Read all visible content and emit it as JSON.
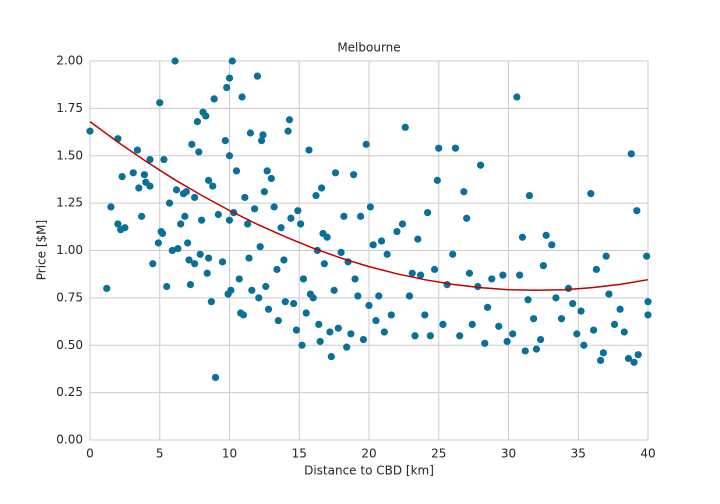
{
  "chart_data": {
    "type": "scatter",
    "title": "Melbourne",
    "x_label": "Distance to CBD [km]",
    "y_label": "Price [$M]",
    "xlim": [
      0,
      40
    ],
    "ylim": [
      0,
      2
    ],
    "xticks": [
      0,
      5,
      10,
      15,
      20,
      25,
      30,
      35,
      40
    ],
    "yticks": [
      {
        "value": 0,
        "label": "0.00"
      },
      {
        "value": 0.25,
        "label": "0.25"
      },
      {
        "value": 0.5,
        "label": "0.50"
      },
      {
        "value": 0.75,
        "label": "0.75"
      },
      {
        "value": 1,
        "label": "1.00"
      },
      {
        "value": 1.25,
        "label": "1.25"
      },
      {
        "value": 1.5,
        "label": "1.50"
      },
      {
        "value": 1.75,
        "label": "1.75"
      },
      {
        "value": 2,
        "label": "2.00"
      }
    ],
    "grid": true,
    "color": "#0a6f99",
    "x": [
      0,
      1.2,
      1.5,
      2,
      2,
      2.2,
      2.3,
      2.5,
      3.1,
      3.4,
      3.5,
      3.7,
      3.9,
      4,
      4.3,
      4.3,
      4.5,
      4.9,
      5,
      5.1,
      5.2,
      5.3,
      5.5,
      5.7,
      5.9,
      6.1,
      6.2,
      6.3,
      6.5,
      6.7,
      6.8,
      6.9,
      7,
      7.1,
      7.2,
      7.3,
      7.5,
      7.5,
      7.7,
      7.8,
      7.9,
      8,
      8.1,
      8.3,
      8.4,
      8.5,
      8.5,
      8.7,
      8.8,
      8.9,
      9,
      9.2,
      9.5,
      9.7,
      9.8,
      9.9,
      10,
      10,
      10,
      10.1,
      10.2,
      10.3,
      10.5,
      10.7,
      10.8,
      10.9,
      11,
      11.1,
      11.3,
      11.4,
      11.5,
      11.6,
      11.8,
      12,
      12.1,
      12.2,
      12.3,
      12.4,
      12.5,
      12.6,
      12.7,
      12.8,
      13,
      13.2,
      13.4,
      13.5,
      13.7,
      13.9,
      14,
      14.2,
      14.3,
      14.4,
      14.6,
      14.8,
      14.9,
      15.1,
      15.2,
      15.3,
      15.5,
      15.7,
      15.8,
      16,
      16.2,
      16.3,
      16.4,
      16.5,
      16.6,
      16.7,
      16.8,
      17,
      17.2,
      17.3,
      17.5,
      17.6,
      17.8,
      18,
      18.2,
      18.4,
      18.5,
      18.7,
      18.9,
      19,
      19.2,
      19.4,
      19.6,
      19.8,
      20,
      20.1,
      20.3,
      20.5,
      20.7,
      20.9,
      21.1,
      21.3,
      21.6,
      22,
      22.4,
      22.6,
      22.9,
      23.1,
      23.3,
      23.5,
      23.7,
      24,
      24.2,
      24.4,
      24.7,
      24.9,
      25,
      25.3,
      25.6,
      26,
      26.2,
      26.5,
      26.8,
      27,
      27.2,
      27.4,
      27.8,
      28,
      28.3,
      28.5,
      28.8,
      29.3,
      29.6,
      29.9,
      30.3,
      30.6,
      30.8,
      31,
      31.2,
      31.4,
      31.5,
      31.8,
      32,
      32.3,
      32.5,
      32.7,
      33.1,
      33.4,
      33.8,
      34.3,
      34.6,
      34.9,
      35.2,
      35.4,
      35.9,
      36.1,
      36.3,
      36.6,
      36.8,
      37,
      37.2,
      37.6,
      38,
      38.3,
      38.6,
      38.8,
      39,
      39.2,
      39.3,
      39.9,
      40,
      40
    ],
    "values": [
      1.63,
      0.8,
      1.23,
      1.59,
      1.14,
      1.11,
      1.39,
      1.12,
      1.41,
      1.53,
      1.33,
      1.18,
      1.4,
      1.36,
      1.34,
      1.48,
      0.93,
      1.04,
      1.78,
      1.1,
      1.09,
      1.48,
      0.81,
      1.25,
      1,
      2,
      1.32,
      1.01,
      1.14,
      1.3,
      1.18,
      1.31,
      1.04,
      0.95,
      0.82,
      1.56,
      1.28,
      0.93,
      1.68,
      1.52,
      0.98,
      1.16,
      1.73,
      1.71,
      0.88,
      1.37,
      0.96,
      0.73,
      1.34,
      1.8,
      0.33,
      1.19,
      0.94,
      1.58,
      1.86,
      0.77,
      1.5,
      1.91,
      1.16,
      0.79,
      2,
      1.2,
      1.42,
      0.85,
      0.67,
      1.81,
      0.66,
      1.28,
      1.14,
      0.96,
      1.62,
      0.79,
      1.22,
      1.92,
      0.75,
      1.02,
      1.58,
      1.61,
      1.31,
      0.81,
      1.42,
      0.69,
      1.38,
      1.23,
      0.9,
      0.63,
      1.12,
      0.95,
      0.73,
      1.63,
      1.69,
      1.17,
      0.72,
      0.58,
      1.21,
      1.14,
      0.5,
      0.85,
      0.67,
      1.53,
      0.77,
      0.75,
      1.29,
      1,
      0.61,
      0.52,
      1.33,
      1.09,
      0.93,
      1.07,
      0.57,
      0.44,
      0.79,
      1.41,
      0.59,
      0.99,
      1.18,
      0.49,
      0.94,
      0.56,
      1.4,
      0.85,
      0.76,
      1.18,
      0.53,
      1.56,
      0.71,
      1.23,
      1.03,
      0.63,
      0.76,
      1.05,
      0.57,
      0.98,
      0.66,
      1.1,
      1.14,
      1.65,
      0.76,
      0.88,
      0.55,
      1.06,
      0.87,
      0.66,
      1.2,
      0.55,
      0.9,
      1.37,
      1.54,
      0.61,
      0.82,
      0.98,
      1.54,
      0.55,
      1.31,
      1.17,
      0.88,
      0.61,
      0.81,
      1.45,
      0.51,
      0.7,
      0.85,
      0.6,
      0.87,
      0.52,
      0.56,
      1.81,
      0.87,
      1.07,
      0.47,
      0.74,
      1.29,
      0.64,
      0.48,
      0.53,
      0.92,
      1.08,
      1.03,
      0.75,
      0.64,
      0.8,
      0.72,
      0.56,
      0.68,
      0.5,
      1.3,
      0.58,
      0.9,
      0.42,
      0.46,
      0.97,
      0.77,
      0.61,
      0.69,
      0.57,
      0.43,
      1.51,
      0.41,
      1.21,
      0.45,
      0.97,
      0.73,
      0.66
    ],
    "fit_color": "#c00000",
    "fit_x": [
      0,
      2,
      4,
      6,
      8,
      10,
      12,
      14,
      16,
      18,
      20,
      22,
      24,
      26,
      28,
      30,
      32,
      34,
      36,
      38,
      40
    ],
    "fit_values": [
      1.68,
      1.572,
      1.471,
      1.377,
      1.291,
      1.211,
      1.138,
      1.072,
      1.012,
      0.96,
      0.915,
      0.877,
      0.846,
      0.821,
      0.804,
      0.793,
      0.79,
      0.793,
      0.804,
      0.821,
      0.846
    ]
  }
}
